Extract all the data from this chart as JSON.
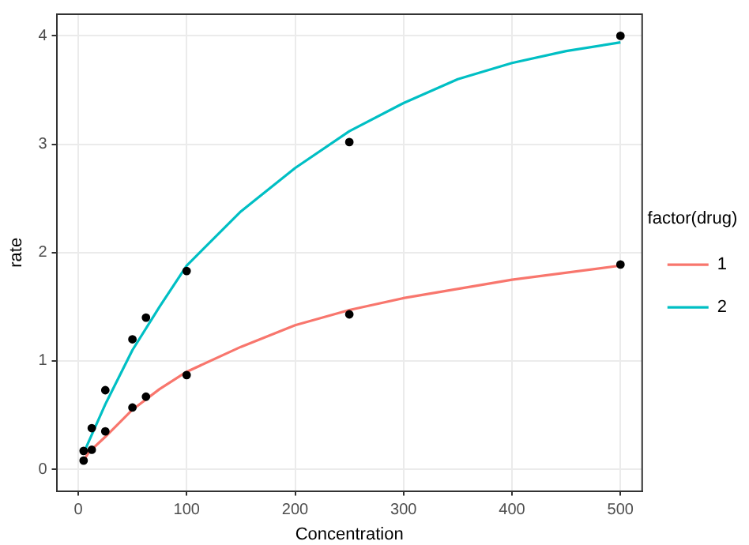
{
  "chart_data": {
    "type": "line",
    "xlabel": "Concentration",
    "ylabel": "rate",
    "legend_title": "factor(drug)",
    "legend": "right",
    "grid": true,
    "marker": "none",
    "xlim": [
      -20,
      520
    ],
    "xticks": [
      0,
      100,
      200,
      300,
      400,
      500
    ],
    "ylim": [
      -0.2,
      4.2
    ],
    "yticks": [
      0,
      1,
      2,
      3,
      4
    ],
    "series": [
      {
        "type": "scatter",
        "color": "#000000",
        "marker": "circle",
        "x": [
          5,
          12.5,
          25,
          50,
          62.5,
          100,
          250,
          500
        ],
        "values": [
          0.08,
          0.18,
          0.35,
          0.57,
          0.67,
          0.87,
          1.43,
          1.89
        ]
      },
      {
        "type": "scatter",
        "color": "#000000",
        "marker": "circle",
        "x": [
          5,
          12.5,
          25,
          50,
          62.5,
          100,
          250,
          500
        ],
        "values": [
          0.17,
          0.38,
          0.73,
          1.2,
          1.4,
          1.83,
          3.02,
          4.0
        ]
      },
      {
        "name": "1",
        "color": "#f8766d",
        "x": [
          5,
          10,
          25,
          50,
          75,
          100,
          150,
          200,
          250,
          300,
          400,
          500
        ],
        "values": [
          0.08,
          0.16,
          0.3,
          0.55,
          0.74,
          0.9,
          1.13,
          1.33,
          1.47,
          1.58,
          1.75,
          1.88
        ]
      },
      {
        "name": "2",
        "color": "#00bfc4",
        "x": [
          5,
          25,
          50,
          75,
          100,
          150,
          200,
          250,
          300,
          350,
          400,
          450,
          500
        ],
        "values": [
          0.15,
          0.6,
          1.1,
          1.5,
          1.88,
          2.38,
          2.78,
          3.12,
          3.38,
          3.6,
          3.75,
          3.86,
          3.94
        ]
      }
    ]
  }
}
